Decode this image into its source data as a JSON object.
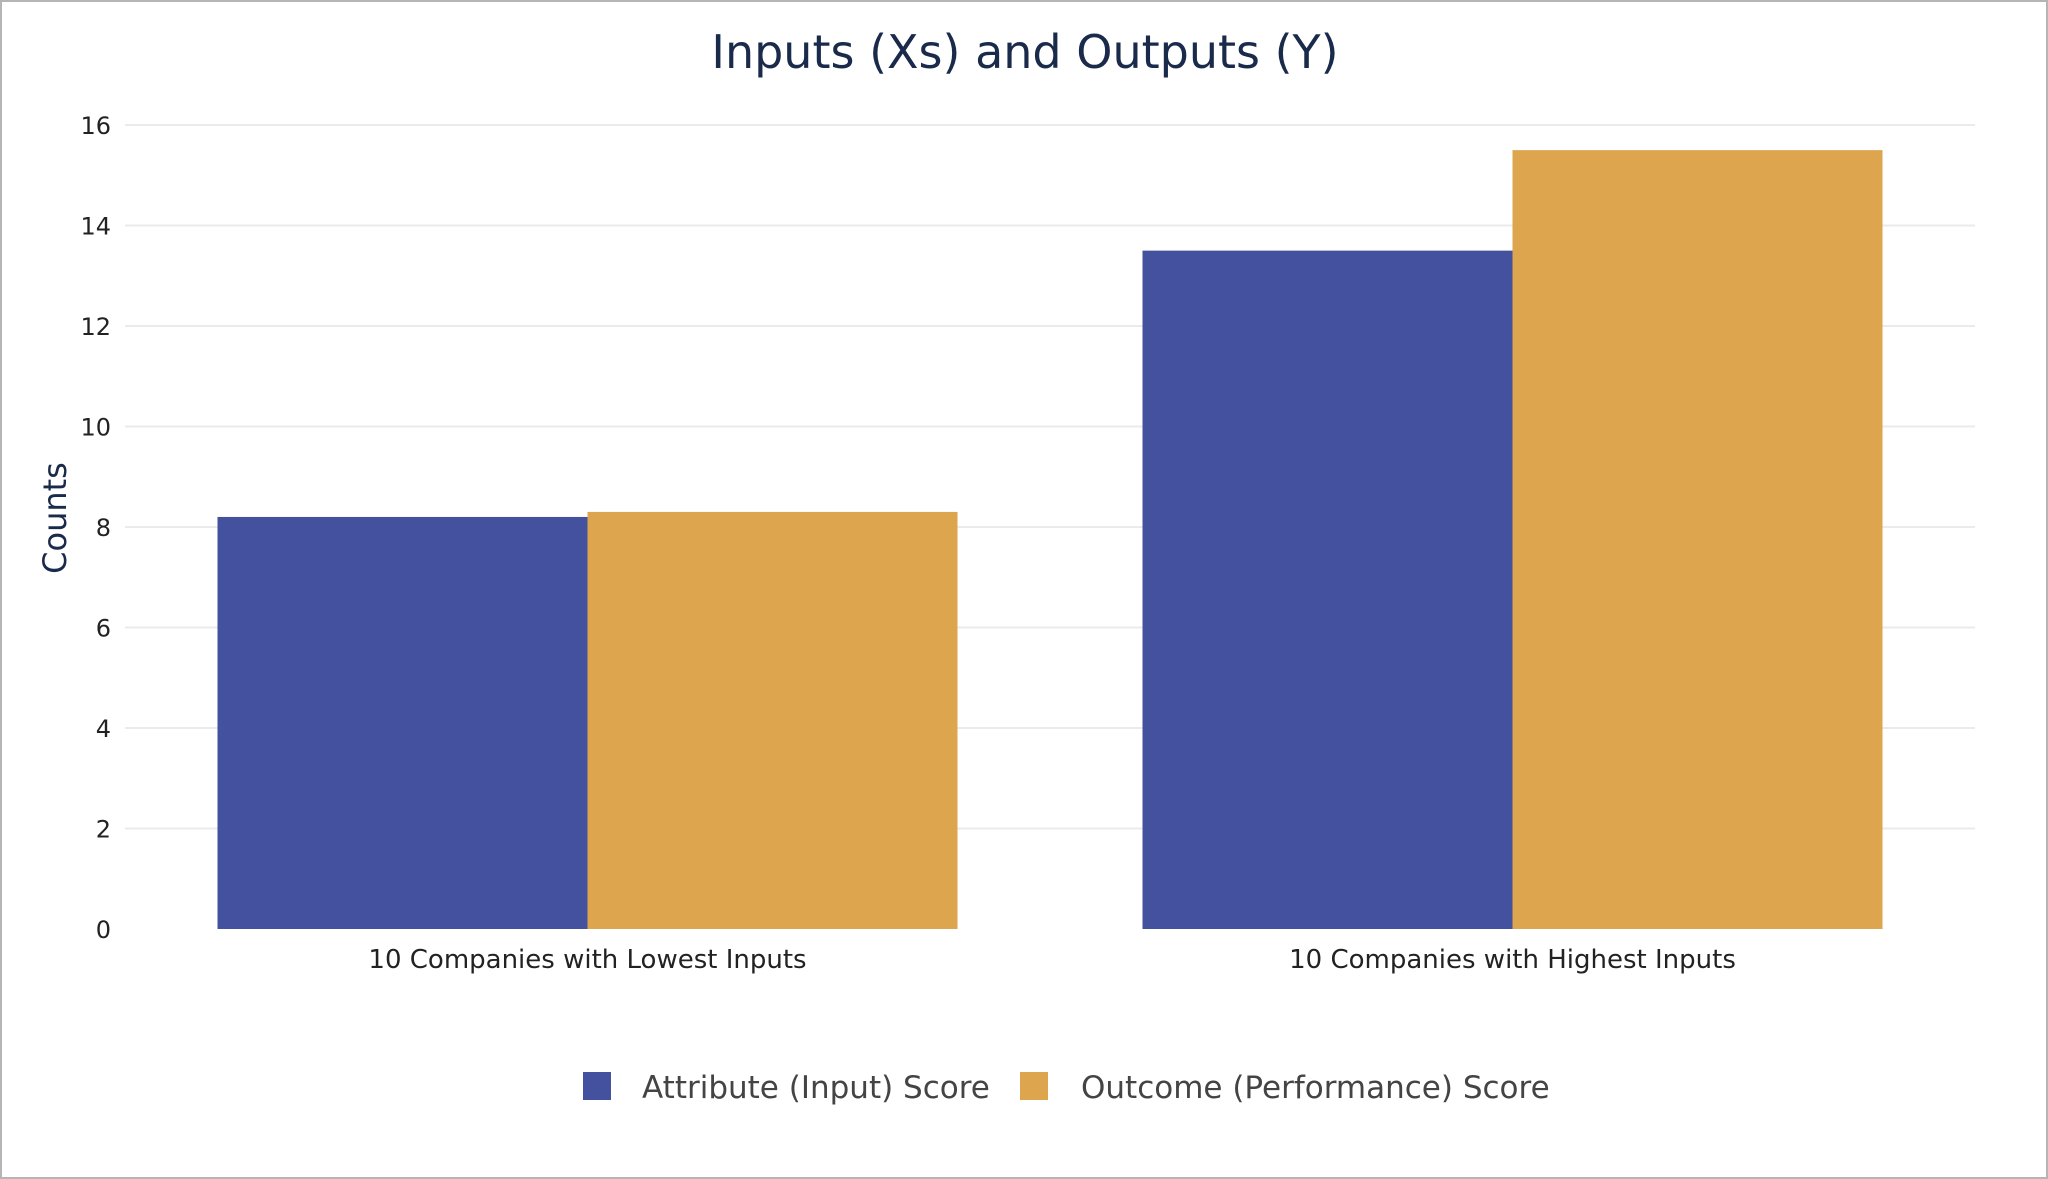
{
  "chart_data": {
    "type": "bar",
    "title": "Inputs (Xs) and Outputs (Y)",
    "xlabel": "",
    "ylabel": "Counts",
    "ylim": [
      0,
      16
    ],
    "yticks": [
      0,
      2,
      4,
      6,
      8,
      10,
      12,
      14,
      16
    ],
    "grid": true,
    "legend_placement": "bottom",
    "categories": [
      "10 Companies with Lowest Inputs",
      "10 Companies with Highest Inputs"
    ],
    "series": [
      {
        "name": "Attribute (Input) Score",
        "values": [
          8.2,
          13.5
        ],
        "color": "#43519e"
      },
      {
        "name": "Outcome (Performance) Score",
        "values": [
          8.3,
          15.5
        ],
        "color": "#dda54e"
      }
    ]
  }
}
